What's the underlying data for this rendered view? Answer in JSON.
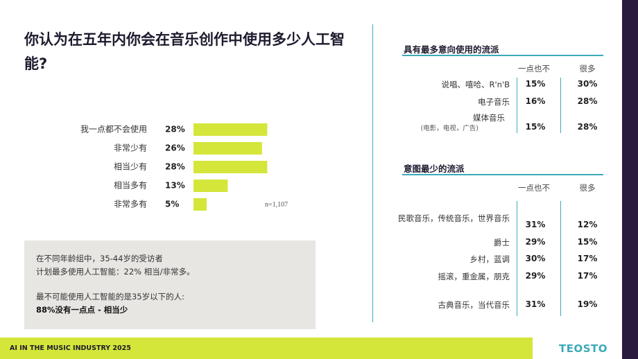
{
  "chart_data": {
    "type": "bar",
    "title": "你认为在五年内你会在音乐创作中使用多少人工智能?",
    "categories": [
      "我一点都不会使用",
      "非常少有",
      "相当少有",
      "相当多有",
      "非常多有"
    ],
    "values": [
      28,
      26,
      28,
      13,
      5
    ],
    "value_labels": [
      "28%",
      "26%",
      "28%",
      "13%",
      "5%"
    ],
    "color": "#d4e63a",
    "annotation": "n=1,107"
  },
  "note_box": {
    "lines": [
      "在不同年龄组中，35-44岁的受访者",
      "计划最多使用人工智能：22% 相当/非常多。",
      "最不可能使用人工智能的是35岁以下的人:"
    ],
    "highlight": "88%没有一点点 - 相当少"
  },
  "table_most": {
    "title": "具有最多意向使用的流派",
    "columns": [
      "一点也不",
      "很多"
    ],
    "rows": [
      {
        "label": "说唱、嘻哈、R'n'B",
        "cells": [
          "15%",
          "30%"
        ]
      },
      {
        "label": "电子音乐",
        "cells": [
          "16%",
          "28%"
        ]
      },
      {
        "label": "媒体音乐",
        "sublabel": "(电影，电视，广告)",
        "cells": [
          "15%",
          "28%"
        ]
      }
    ]
  },
  "table_least": {
    "title": "意图最少的流派",
    "columns": [
      "一点也不",
      "很多"
    ],
    "rows": [
      {
        "label": "民歌音乐，传统音乐，世界音乐",
        "cells": [
          "31%",
          "12%"
        ]
      },
      {
        "label": "爵士",
        "cells": [
          "29%",
          "15%"
        ]
      },
      {
        "label": "乡村，蓝调",
        "cells": [
          "30%",
          "17%"
        ]
      },
      {
        "label": "摇滚，重金属，朋克",
        "cells": [
          "29%",
          "17%"
        ]
      },
      {
        "label": "古典音乐，当代音乐",
        "cells": [
          "31%",
          "19%"
        ]
      }
    ]
  },
  "footer": {
    "text": "AI IN THE MUSIC INDUSTRY 2025",
    "logo": "TEOSTO"
  }
}
